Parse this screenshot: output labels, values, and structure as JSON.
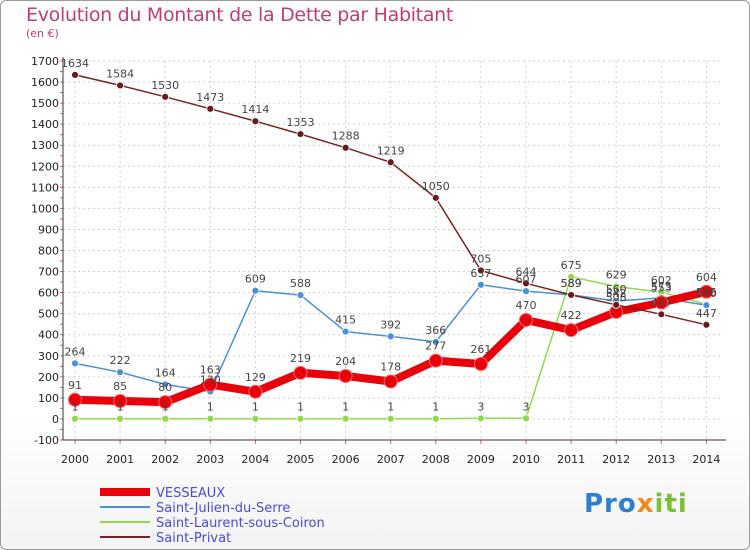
{
  "chart_data": {
    "type": "line",
    "title": "Evolution du Montant de la Dette par Habitant",
    "subtitle": "(en €)",
    "xlabel": "",
    "ylabel": "",
    "ylim": [
      -100,
      1700
    ],
    "yticks": [
      -100,
      0,
      100,
      200,
      300,
      400,
      500,
      600,
      700,
      800,
      900,
      1000,
      1100,
      1200,
      1300,
      1400,
      1500,
      1600,
      1700
    ],
    "categories": [
      "2000",
      "2001",
      "2002",
      "2003",
      "2004",
      "2005",
      "2006",
      "2007",
      "2008",
      "2009",
      "2010",
      "2011",
      "2012",
      "2013",
      "2014"
    ],
    "legend_position": "bottom-left",
    "series": [
      {
        "name": "VESSEAUX",
        "color": "#e8000b",
        "values": [
          91,
          85,
          80,
          163,
          129,
          219,
          204,
          178,
          277,
          261,
          470,
          422,
          508,
          553,
          604
        ],
        "labels": [
          "91",
          "85",
          "80",
          "163",
          "129",
          "219",
          "204",
          "178",
          "277",
          "261",
          "470",
          "422",
          "508",
          "553",
          "604"
        ]
      },
      {
        "name": "Saint-Julien-du-Serre",
        "color": "#4a90d9",
        "values": [
          264,
          222,
          164,
          130,
          609,
          588,
          415,
          392,
          366,
          637,
          607,
          589,
          560,
          575,
          540
        ],
        "labels": [
          "264",
          "222",
          "164",
          "130",
          "609",
          "588",
          "415",
          "392",
          "366",
          "637",
          "607",
          "589",
          "560",
          "575",
          "540"
        ]
      },
      {
        "name": "Saint-Laurent-sous-Coiron",
        "color": "#8fd94a",
        "values": [
          1,
          1,
          1,
          1,
          1,
          1,
          1,
          1,
          1,
          3,
          3,
          675,
          629,
          602,
          545
        ],
        "labels": [
          "1",
          "1",
          "1",
          "1",
          "1",
          "1",
          "1",
          "1",
          "1",
          "3",
          "3",
          "675",
          "629",
          "602",
          "545"
        ]
      },
      {
        "name": "Saint-Privat",
        "color": "#7a2222",
        "values": [
          1634,
          1584,
          1530,
          1473,
          1414,
          1353,
          1288,
          1219,
          1050,
          705,
          644,
          589,
          542,
          497,
          447
        ],
        "labels": [
          "1634",
          "1584",
          "1530",
          "1473",
          "1414",
          "1353",
          "1288",
          "1219",
          "1050",
          "705",
          "644",
          "589",
          "542",
          "497",
          "447"
        ]
      }
    ]
  },
  "logo": {
    "part1": "Pro",
    "part2": "x",
    "part3": "iti"
  }
}
